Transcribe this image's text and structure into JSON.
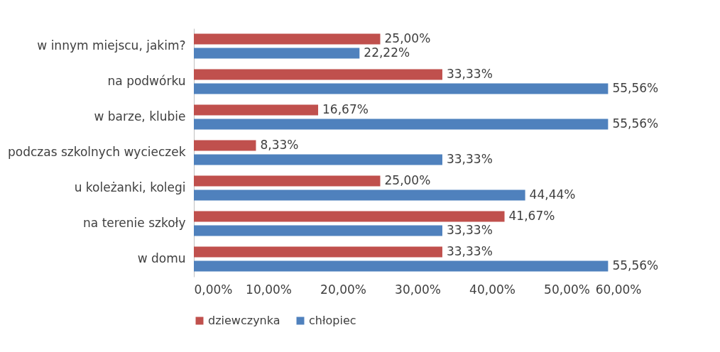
{
  "chart_data": {
    "type": "bar",
    "orientation": "horizontal",
    "categories": [
      "w innym miejscu, jakim?",
      "na podwórku",
      "w barze, klubie",
      "podczas szkolnych wycieczek",
      "u koleżanki, kolegi",
      "na terenie szkoły",
      "w domu"
    ],
    "series": [
      {
        "name": "dziewczynka",
        "color": "#c0504d",
        "values": [
          25,
          33.33,
          16.67,
          8.33,
          25,
          41.67,
          33.33
        ],
        "value_labels": [
          "25,00%",
          "33,33%",
          "16,67%",
          "8,33%",
          "25,00%",
          "41,67%",
          "33,33%"
        ]
      },
      {
        "name": "chłopiec",
        "color": "#4f81bd",
        "values": [
          22.22,
          55.56,
          55.56,
          33.33,
          44.44,
          33.33,
          55.56
        ],
        "value_labels": [
          "22,22%",
          "55,56%",
          "55,56%",
          "33,33%",
          "44,44%",
          "33,33%",
          "55,56%"
        ]
      }
    ],
    "xlim": [
      0,
      60
    ],
    "xticks": [
      {
        "value": 0,
        "label": "0,00%"
      },
      {
        "value": 10,
        "label": "10,00%"
      },
      {
        "value": 20,
        "label": "20,00%"
      },
      {
        "value": 30,
        "label": "30,00%"
      },
      {
        "value": 40,
        "label": "40,00%"
      },
      {
        "value": 50,
        "label": "50,00%"
      },
      {
        "value": 60,
        "label": "60,00%"
      }
    ],
    "legend": "bottom"
  }
}
